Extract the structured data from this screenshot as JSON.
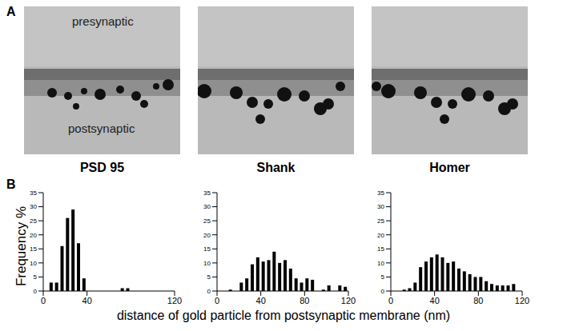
{
  "panels": {
    "A": {
      "label": "A",
      "regions": [
        "presynaptic",
        "postsynaptic"
      ],
      "images": [
        "PSD 95",
        "Shank",
        "Homer"
      ]
    },
    "B": {
      "label": "B",
      "y_label": "Frequency %",
      "x_label": "distance of gold particle from postsynaptic membrane (nm)"
    }
  },
  "chart_data": [
    {
      "type": "bar",
      "bins": [
        0,
        5,
        10,
        15,
        20,
        25,
        30,
        35,
        40,
        45,
        50,
        55,
        60,
        65,
        70,
        75,
        80,
        85,
        90,
        95,
        100,
        105,
        110,
        115,
        120
      ],
      "values": [
        0,
        3,
        3,
        16,
        26,
        29,
        17,
        4.5,
        0,
        0,
        0,
        0,
        0,
        0,
        1,
        1,
        0,
        0,
        0,
        0,
        0,
        0,
        0,
        0
      ],
      "color": "#000000",
      "xlim": [
        0,
        120
      ],
      "xticks": [
        0,
        40,
        120
      ],
      "ylim": [
        0,
        35
      ],
      "yticks": [
        0,
        5,
        10,
        15,
        20,
        25,
        30,
        35
      ]
    },
    {
      "type": "bar",
      "bins": [
        0,
        5,
        10,
        15,
        20,
        25,
        30,
        35,
        40,
        45,
        50,
        55,
        60,
        65,
        70,
        75,
        80,
        85,
        90,
        95,
        100,
        105,
        110,
        115,
        120
      ],
      "values": [
        0,
        0,
        0.5,
        0,
        3,
        4.5,
        9.5,
        12,
        10.5,
        11,
        14,
        10,
        11,
        8,
        4.5,
        3,
        4.5,
        4,
        0,
        0.5,
        2,
        0,
        2,
        1.5
      ],
      "color": "#000000",
      "xlim": [
        0,
        120
      ],
      "xticks": [
        0,
        40,
        80,
        120
      ],
      "ylim": [
        0,
        35
      ],
      "yticks": [
        0,
        5,
        10,
        15,
        20,
        25,
        30,
        35
      ]
    },
    {
      "type": "bar",
      "bins": [
        0,
        5,
        10,
        15,
        20,
        25,
        30,
        35,
        40,
        45,
        50,
        55,
        60,
        65,
        70,
        75,
        80,
        85,
        90,
        95,
        100,
        105,
        110,
        115,
        120
      ],
      "values": [
        0,
        0,
        0.5,
        1,
        3,
        8.5,
        10.5,
        12,
        13,
        12,
        10,
        10.5,
        8,
        7,
        6,
        5,
        5,
        3.5,
        2.5,
        2,
        2,
        2,
        2.5,
        0
      ],
      "color": "#000000",
      "xlim": [
        0,
        120
      ],
      "xticks": [
        0,
        40,
        80,
        120
      ],
      "ylim": [
        0,
        35
      ],
      "yticks": [
        0,
        5,
        10,
        15,
        20,
        25,
        30,
        35
      ]
    }
  ]
}
